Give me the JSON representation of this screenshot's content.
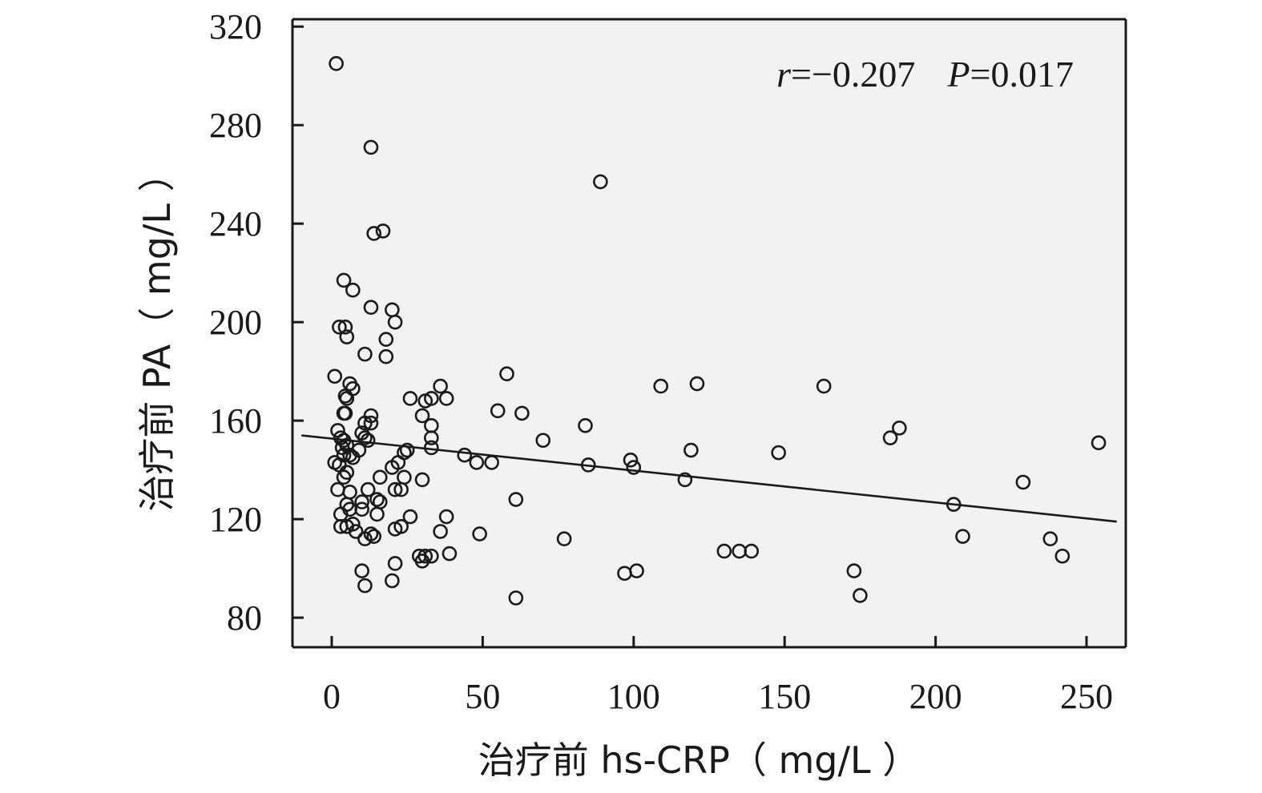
{
  "chart_data": {
    "type": "scatter",
    "xlabel": "治疗前 hs-CRP（ mg/L ）",
    "ylabel": "治疗前 PA（ mg/L ）",
    "xlim": [
      -13,
      263
    ],
    "ylim": [
      68,
      323
    ],
    "xticks": [
      0,
      50,
      100,
      150,
      200,
      250
    ],
    "yticks": [
      80,
      120,
      160,
      200,
      240,
      280,
      320
    ],
    "background": "#f2f2f2",
    "grid": false,
    "annotation": {
      "r_sym": "r",
      "r_val": "=−0.207",
      "p_sym": "P",
      "p_val": "=0.017"
    },
    "fit_line": {
      "x": [
        -10,
        260
      ],
      "y": [
        154,
        119
      ]
    },
    "points": [
      {
        "x": 1.5,
        "y": 305
      },
      {
        "x": 13,
        "y": 271
      },
      {
        "x": 89,
        "y": 257
      },
      {
        "x": 14,
        "y": 236
      },
      {
        "x": 17,
        "y": 237
      },
      {
        "x": 4,
        "y": 217
      },
      {
        "x": 7,
        "y": 213
      },
      {
        "x": 13,
        "y": 206
      },
      {
        "x": 20,
        "y": 205
      },
      {
        "x": 21,
        "y": 200
      },
      {
        "x": 2.5,
        "y": 198
      },
      {
        "x": 4.5,
        "y": 198
      },
      {
        "x": 5,
        "y": 194
      },
      {
        "x": 18,
        "y": 193
      },
      {
        "x": 11,
        "y": 187
      },
      {
        "x": 18,
        "y": 186
      },
      {
        "x": 1,
        "y": 178
      },
      {
        "x": 58,
        "y": 179
      },
      {
        "x": 6,
        "y": 175
      },
      {
        "x": 7,
        "y": 173
      },
      {
        "x": 36,
        "y": 174
      },
      {
        "x": 109,
        "y": 174
      },
      {
        "x": 121,
        "y": 175
      },
      {
        "x": 163,
        "y": 174
      },
      {
        "x": 4.5,
        "y": 170
      },
      {
        "x": 5,
        "y": 169
      },
      {
        "x": 26,
        "y": 169
      },
      {
        "x": 31,
        "y": 168
      },
      {
        "x": 33,
        "y": 169
      },
      {
        "x": 38,
        "y": 169
      },
      {
        "x": 4,
        "y": 163
      },
      {
        "x": 4.5,
        "y": 163
      },
      {
        "x": 13,
        "y": 162
      },
      {
        "x": 30,
        "y": 162
      },
      {
        "x": 55,
        "y": 164
      },
      {
        "x": 63,
        "y": 163
      },
      {
        "x": 2,
        "y": 156
      },
      {
        "x": 11,
        "y": 159
      },
      {
        "x": 13,
        "y": 159
      },
      {
        "x": 33,
        "y": 158
      },
      {
        "x": 84,
        "y": 158
      },
      {
        "x": 3,
        "y": 153
      },
      {
        "x": 4,
        "y": 152
      },
      {
        "x": 10,
        "y": 155
      },
      {
        "x": 11,
        "y": 153
      },
      {
        "x": 12,
        "y": 152
      },
      {
        "x": 33,
        "y": 153
      },
      {
        "x": 70,
        "y": 152
      },
      {
        "x": 185,
        "y": 153
      },
      {
        "x": 188,
        "y": 157
      },
      {
        "x": 3.5,
        "y": 149
      },
      {
        "x": 5,
        "y": 150
      },
      {
        "x": 9,
        "y": 148
      },
      {
        "x": 25,
        "y": 148
      },
      {
        "x": 33,
        "y": 149
      },
      {
        "x": 254,
        "y": 151
      },
      {
        "x": 4,
        "y": 146
      },
      {
        "x": 6,
        "y": 146
      },
      {
        "x": 7,
        "y": 145
      },
      {
        "x": 24,
        "y": 147
      },
      {
        "x": 44,
        "y": 146
      },
      {
        "x": 119,
        "y": 148
      },
      {
        "x": 148,
        "y": 147
      },
      {
        "x": 1,
        "y": 143
      },
      {
        "x": 2.5,
        "y": 142
      },
      {
        "x": 20,
        "y": 141
      },
      {
        "x": 22,
        "y": 143
      },
      {
        "x": 48,
        "y": 143
      },
      {
        "x": 53,
        "y": 143
      },
      {
        "x": 85,
        "y": 142
      },
      {
        "x": 99,
        "y": 144
      },
      {
        "x": 100,
        "y": 141
      },
      {
        "x": 4,
        "y": 137
      },
      {
        "x": 5,
        "y": 139
      },
      {
        "x": 16,
        "y": 137
      },
      {
        "x": 24,
        "y": 137
      },
      {
        "x": 30,
        "y": 136
      },
      {
        "x": 117,
        "y": 136
      },
      {
        "x": 229,
        "y": 135
      },
      {
        "x": 2,
        "y": 132
      },
      {
        "x": 6,
        "y": 131
      },
      {
        "x": 12,
        "y": 132
      },
      {
        "x": 21,
        "y": 132
      },
      {
        "x": 23,
        "y": 132
      },
      {
        "x": 5,
        "y": 126
      },
      {
        "x": 6,
        "y": 124
      },
      {
        "x": 10,
        "y": 127
      },
      {
        "x": 10,
        "y": 124
      },
      {
        "x": 15,
        "y": 128
      },
      {
        "x": 16,
        "y": 127
      },
      {
        "x": 61,
        "y": 128
      },
      {
        "x": 206,
        "y": 126
      },
      {
        "x": 3,
        "y": 122
      },
      {
        "x": 15,
        "y": 122
      },
      {
        "x": 26,
        "y": 121
      },
      {
        "x": 38,
        "y": 121
      },
      {
        "x": 3,
        "y": 117
      },
      {
        "x": 5,
        "y": 117
      },
      {
        "x": 7,
        "y": 118
      },
      {
        "x": 8,
        "y": 115
      },
      {
        "x": 11,
        "y": 112
      },
      {
        "x": 13,
        "y": 114
      },
      {
        "x": 14,
        "y": 113
      },
      {
        "x": 21,
        "y": 116
      },
      {
        "x": 23,
        "y": 117
      },
      {
        "x": 36,
        "y": 115
      },
      {
        "x": 49,
        "y": 114
      },
      {
        "x": 77,
        "y": 112
      },
      {
        "x": 209,
        "y": 113
      },
      {
        "x": 238,
        "y": 112
      },
      {
        "x": 21,
        "y": 102
      },
      {
        "x": 29,
        "y": 105
      },
      {
        "x": 30,
        "y": 103
      },
      {
        "x": 31,
        "y": 105
      },
      {
        "x": 33,
        "y": 105
      },
      {
        "x": 39,
        "y": 106
      },
      {
        "x": 130,
        "y": 107
      },
      {
        "x": 135,
        "y": 107
      },
      {
        "x": 139,
        "y": 107
      },
      {
        "x": 242,
        "y": 105
      },
      {
        "x": 10,
        "y": 99
      },
      {
        "x": 97,
        "y": 98
      },
      {
        "x": 101,
        "y": 99
      },
      {
        "x": 173,
        "y": 99
      },
      {
        "x": 11,
        "y": 93
      },
      {
        "x": 20,
        "y": 95
      },
      {
        "x": 61,
        "y": 88
      },
      {
        "x": 175,
        "y": 89
      }
    ]
  }
}
